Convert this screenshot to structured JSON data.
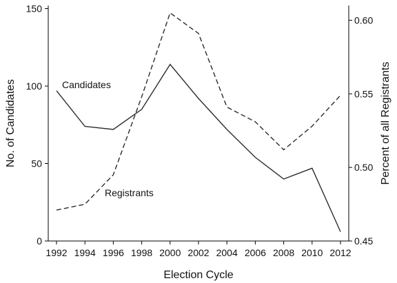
{
  "chart_data": {
    "type": "line",
    "xlabel": "Election Cycle",
    "ylabel_left": "No. of Candidates",
    "ylabel_right": "Percent of all Registrants",
    "x": [
      1992,
      1994,
      1996,
      1998,
      2000,
      2002,
      2004,
      2006,
      2008,
      2010,
      2012
    ],
    "x_ticks": [
      "1992",
      "1994",
      "1996",
      "1998",
      "2000",
      "2002",
      "2004",
      "2006",
      "2008",
      "2010",
      "2012"
    ],
    "xlim": [
      1992,
      2012
    ],
    "ylim_left": [
      0,
      152
    ],
    "ylim_right": [
      0.45,
      0.61
    ],
    "y_ticks_left": [
      "0",
      "50",
      "100",
      "150"
    ],
    "y_ticks_right": [
      "0.45",
      "0.50",
      "0.55",
      "0.60"
    ],
    "grid": false,
    "series": [
      {
        "name": "Candidates",
        "axis": "left",
        "style": "solid",
        "color": "#2b2b2b",
        "values": [
          97,
          74,
          72,
          85,
          114,
          92,
          72,
          54,
          40,
          47,
          6
        ]
      },
      {
        "name": "Registrants",
        "axis": "right",
        "style": "dashed",
        "color": "#2b2b2b",
        "values": [
          0.471,
          0.475,
          0.495,
          0.548,
          0.605,
          0.591,
          0.541,
          0.531,
          0.512,
          0.528,
          0.549
        ]
      }
    ]
  }
}
